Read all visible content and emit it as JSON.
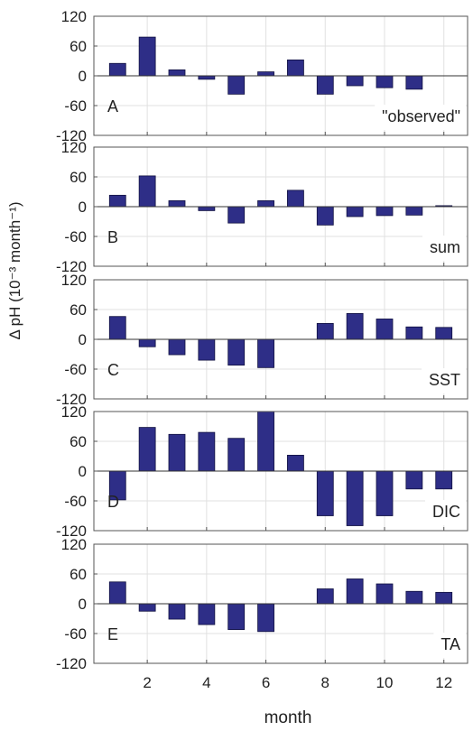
{
  "chart_data": {
    "type": "bar",
    "xlabel": "month",
    "ylabel": "Δ pH (10⁻³ month⁻¹)",
    "x": [
      1,
      2,
      3,
      4,
      5,
      6,
      7,
      8,
      9,
      10,
      11,
      12
    ],
    "xticks": [
      2,
      4,
      6,
      8,
      10,
      12
    ],
    "xlim": [
      0.2,
      12.8
    ],
    "ylim": [
      -120,
      120
    ],
    "yticks": [
      120,
      60,
      0,
      -60,
      -120
    ],
    "grid": true,
    "bar_color": "#2e2e87",
    "panels": [
      {
        "letter": "A",
        "tag": "\"observed\"",
        "values": [
          25,
          78,
          12,
          -7,
          -37,
          8,
          32,
          -37,
          -20,
          -24,
          -27,
          0
        ]
      },
      {
        "letter": "B",
        "tag": "sum",
        "values": [
          23,
          62,
          12,
          -8,
          -33,
          12,
          33,
          -37,
          -20,
          -18,
          -17,
          2
        ]
      },
      {
        "letter": "C",
        "tag": "SST",
        "values": [
          46,
          -15,
          -31,
          -42,
          -52,
          -57,
          0,
          32,
          52,
          41,
          25,
          24
        ]
      },
      {
        "letter": "D",
        "tag": "DIC",
        "values": [
          -58,
          88,
          74,
          78,
          66,
          122,
          32,
          -90,
          -110,
          -90,
          -36,
          -36
        ]
      },
      {
        "letter": "E",
        "tag": "TA",
        "values": [
          44,
          -15,
          -31,
          -42,
          -52,
          -56,
          0,
          30,
          50,
          40,
          25,
          23
        ]
      }
    ]
  }
}
